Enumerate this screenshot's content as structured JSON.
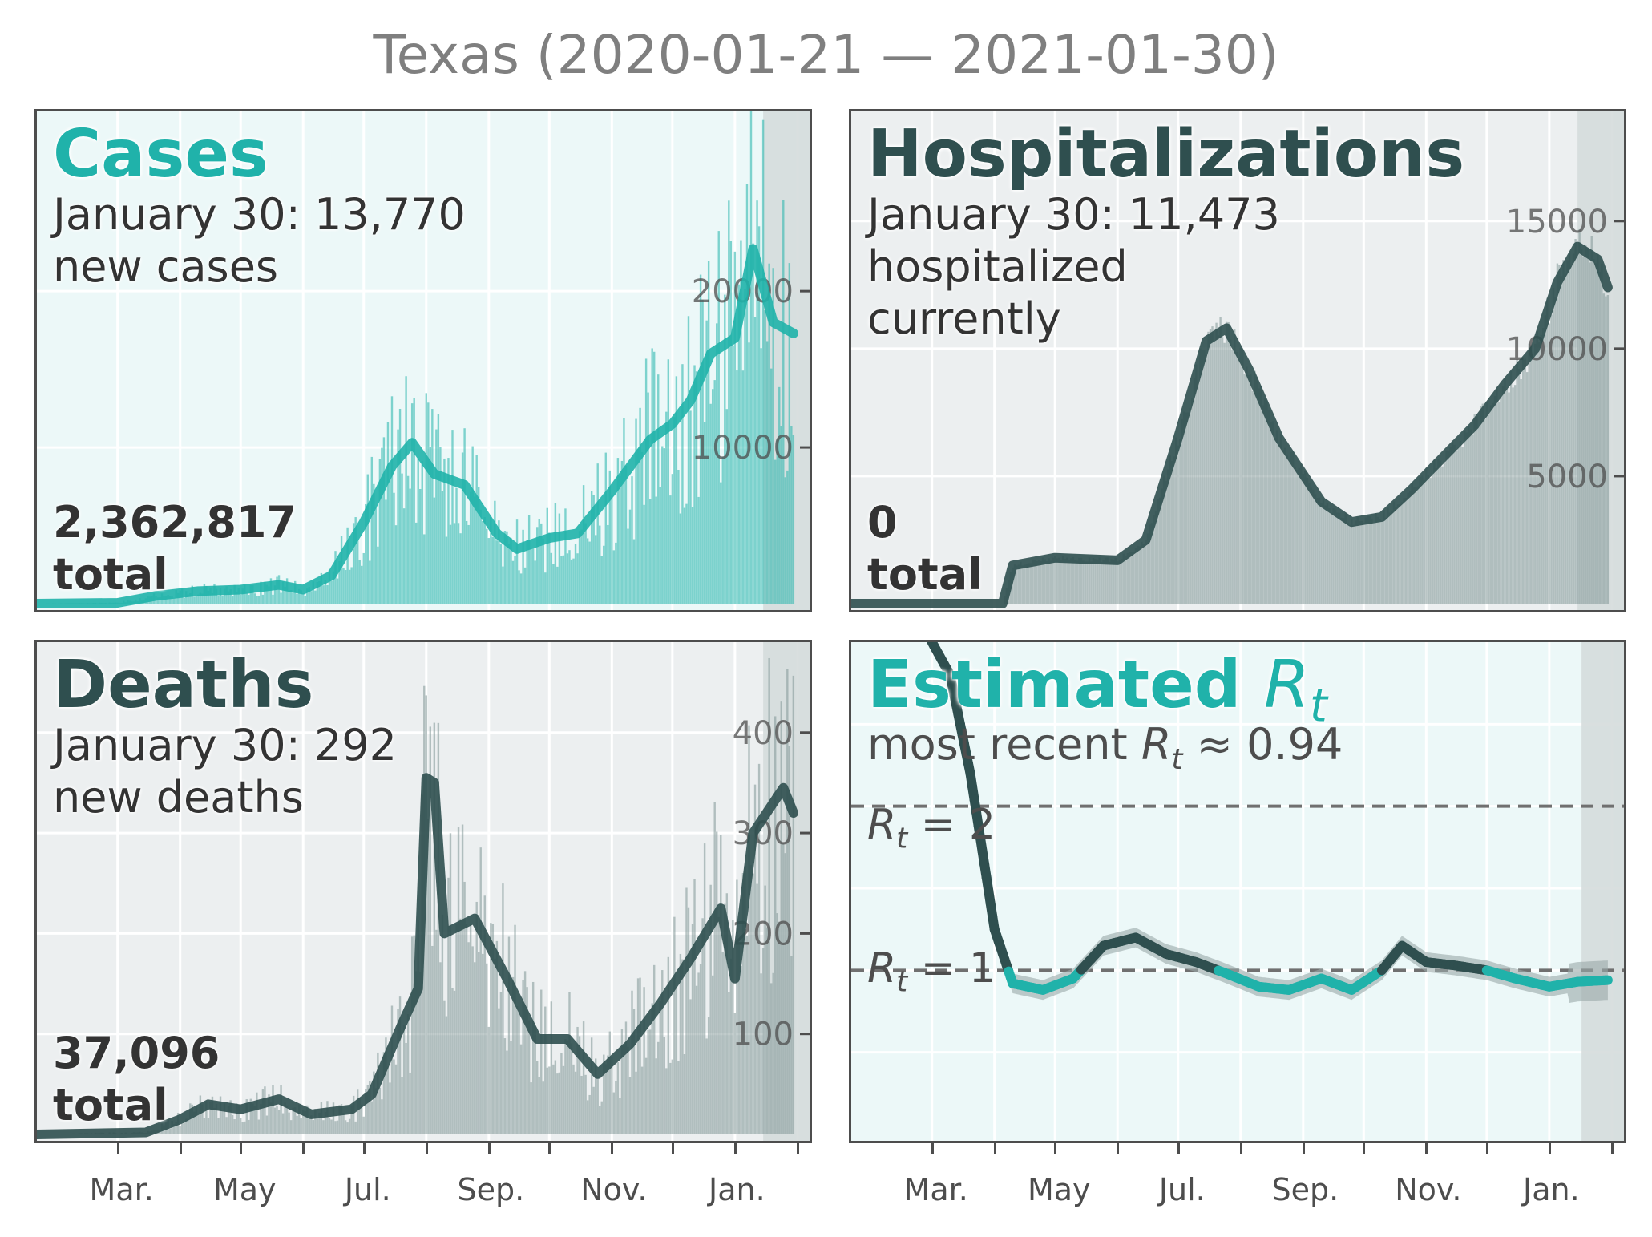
{
  "title": "Texas (2020-01-21 — 2021-01-30)",
  "colors": {
    "teal": "#20b2aa",
    "dark": "#2f4f4f",
    "grey_text": "#7f7f7f",
    "panel_bg_teal": "#ecf8f8",
    "panel_bg_grey": "#eceff0",
    "shade": "#d5dbdb"
  },
  "x_tick_labels": [
    "Mar.",
    "May",
    "Jul.",
    "Sep.",
    "Nov.",
    "Jan."
  ],
  "panels": {
    "cases": {
      "title": "Cases",
      "line1": "January 30: 13,770",
      "line2": "new cases",
      "total_value": "2,362,817",
      "total_label": "total"
    },
    "hosp": {
      "title": "Hospitalizations",
      "line1": "January 30: 11,473",
      "line2": "hospitalized",
      "line3": "currently",
      "total_value": "0",
      "total_label": "total"
    },
    "deaths": {
      "title": "Deaths",
      "line1": "January 30: 292",
      "line2": "new deaths",
      "total_value": "37,096",
      "total_label": "total"
    },
    "rt": {
      "title_main": "Estimated ",
      "title_sym": "R",
      "title_sub": "t",
      "recent_prefix": "most recent ",
      "recent_value": "≈ 0.94",
      "ref2_value": "= 2",
      "ref1_value": "= 1"
    }
  },
  "chart_data": [
    {
      "type": "bar",
      "name": "cases",
      "title": "Cases",
      "x_range": [
        "2020-01-21",
        "2021-01-30"
      ],
      "ylim": [
        0,
        31500
      ],
      "yticks": [
        10000,
        20000
      ],
      "smoothed_line": [
        [
          "2020-01-21",
          0
        ],
        [
          "2020-03-01",
          50
        ],
        [
          "2020-03-20",
          500
        ],
        [
          "2020-04-10",
          800
        ],
        [
          "2020-05-01",
          900
        ],
        [
          "2020-05-20",
          1200
        ],
        [
          "2020-06-01",
          900
        ],
        [
          "2020-06-15",
          1800
        ],
        [
          "2020-07-01",
          5200
        ],
        [
          "2020-07-15",
          8800
        ],
        [
          "2020-07-25",
          10300
        ],
        [
          "2020-08-05",
          8300
        ],
        [
          "2020-08-20",
          7600
        ],
        [
          "2020-09-05",
          4500
        ],
        [
          "2020-09-15",
          3500
        ],
        [
          "2020-10-01",
          4200
        ],
        [
          "2020-10-15",
          4500
        ],
        [
          "2020-11-01",
          7200
        ],
        [
          "2020-11-20",
          10500
        ],
        [
          "2020-12-01",
          11500
        ],
        [
          "2020-12-10",
          13000
        ],
        [
          "2020-12-20",
          16000
        ],
        [
          "2021-01-01",
          17000
        ],
        [
          "2021-01-10",
          22700
        ],
        [
          "2021-01-20",
          18000
        ],
        [
          "2021-01-30",
          17300
        ]
      ]
    },
    {
      "type": "bar",
      "name": "hospitalizations",
      "title": "Hospitalizations",
      "x_range": [
        "2020-01-21",
        "2021-01-30"
      ],
      "ylim": [
        0,
        19300
      ],
      "yticks": [
        5000,
        10000,
        15000
      ],
      "smoothed_line": [
        [
          "2020-01-21",
          0
        ],
        [
          "2020-04-05",
          0
        ],
        [
          "2020-04-10",
          1500
        ],
        [
          "2020-05-01",
          1800
        ],
        [
          "2020-06-01",
          1700
        ],
        [
          "2020-06-15",
          2500
        ],
        [
          "2020-07-01",
          6500
        ],
        [
          "2020-07-15",
          10300
        ],
        [
          "2020-07-25",
          10800
        ],
        [
          "2020-08-05",
          9200
        ],
        [
          "2020-08-20",
          6500
        ],
        [
          "2020-09-10",
          4000
        ],
        [
          "2020-09-25",
          3200
        ],
        [
          "2020-10-10",
          3400
        ],
        [
          "2020-10-25",
          4500
        ],
        [
          "2020-11-10",
          5800
        ],
        [
          "2020-11-25",
          7000
        ],
        [
          "2020-12-10",
          8600
        ],
        [
          "2020-12-25",
          10000
        ],
        [
          "2021-01-05",
          12600
        ],
        [
          "2021-01-15",
          14000
        ],
        [
          "2021-01-25",
          13500
        ],
        [
          "2021-01-30",
          12400
        ]
      ]
    },
    {
      "type": "bar",
      "name": "deaths",
      "title": "Deaths",
      "x_range": [
        "2020-01-21",
        "2021-01-30"
      ],
      "ylim": [
        0,
        490
      ],
      "yticks": [
        100,
        200,
        300,
        400
      ],
      "smoothed_line": [
        [
          "2020-01-21",
          0
        ],
        [
          "2020-03-15",
          2
        ],
        [
          "2020-04-01",
          15
        ],
        [
          "2020-04-15",
          30
        ],
        [
          "2020-05-01",
          25
        ],
        [
          "2020-05-20",
          35
        ],
        [
          "2020-06-05",
          20
        ],
        [
          "2020-06-25",
          25
        ],
        [
          "2020-07-05",
          40
        ],
        [
          "2020-07-20",
          110
        ],
        [
          "2020-07-28",
          145
        ],
        [
          "2020-08-01",
          355
        ],
        [
          "2020-08-05",
          350
        ],
        [
          "2020-08-10",
          200
        ],
        [
          "2020-08-25",
          215
        ],
        [
          "2020-09-10",
          155
        ],
        [
          "2020-09-25",
          95
        ],
        [
          "2020-10-10",
          95
        ],
        [
          "2020-10-25",
          60
        ],
        [
          "2020-11-10",
          90
        ],
        [
          "2020-11-25",
          130
        ],
        [
          "2020-12-10",
          175
        ],
        [
          "2020-12-25",
          225
        ],
        [
          "2021-01-01",
          155
        ],
        [
          "2021-01-10",
          300
        ],
        [
          "2021-01-25",
          345
        ],
        [
          "2021-01-30",
          320
        ]
      ]
    },
    {
      "type": "line",
      "name": "rt",
      "title": "Estimated Rt",
      "x_range": [
        "2020-01-21",
        "2021-01-30"
      ],
      "ylim": [
        0,
        3.0
      ],
      "reference_lines": [
        1,
        2
      ],
      "series": [
        [
          "2020-03-01",
          3.0
        ],
        [
          "2020-03-10",
          2.8
        ],
        [
          "2020-03-20",
          2.2
        ],
        [
          "2020-04-01",
          1.25
        ],
        [
          "2020-04-10",
          0.92
        ],
        [
          "2020-04-25",
          0.88
        ],
        [
          "2020-05-10",
          0.95
        ],
        [
          "2020-05-25",
          1.15
        ],
        [
          "2020-06-10",
          1.2
        ],
        [
          "2020-06-25",
          1.1
        ],
        [
          "2020-07-10",
          1.05
        ],
        [
          "2020-07-25",
          0.98
        ],
        [
          "2020-08-10",
          0.9
        ],
        [
          "2020-08-25",
          0.88
        ],
        [
          "2020-09-10",
          0.95
        ],
        [
          "2020-09-25",
          0.88
        ],
        [
          "2020-10-10",
          1.0
        ],
        [
          "2020-10-20",
          1.15
        ],
        [
          "2020-11-01",
          1.05
        ],
        [
          "2020-11-15",
          1.03
        ],
        [
          "2020-12-01",
          1.0
        ],
        [
          "2020-12-15",
          0.95
        ],
        [
          "2021-01-01",
          0.9
        ],
        [
          "2021-01-15",
          0.93
        ],
        [
          "2021-01-30",
          0.94
        ]
      ]
    }
  ]
}
